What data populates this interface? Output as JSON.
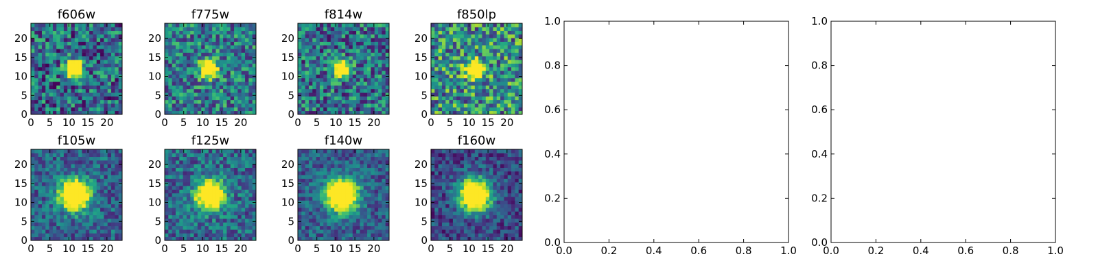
{
  "figure": {
    "background": "#ffffff",
    "colormap": "viridis"
  },
  "chart_data": [
    {
      "type": "heatmap",
      "title": "f606w",
      "grid_size": 25,
      "source_center": [
        11.5,
        12
      ],
      "source_width": 1.6,
      "noise": 0.35,
      "background_level": 0.35,
      "seed": 11,
      "xlim": [
        0,
        24
      ],
      "ylim": [
        0,
        24
      ],
      "xticks": [
        "0",
        "5",
        "10",
        "15",
        "20"
      ],
      "yticks": [
        "0",
        "5",
        "10",
        "15",
        "20"
      ]
    },
    {
      "type": "heatmap",
      "title": "f775w",
      "grid_size": 25,
      "source_center": [
        11.5,
        12
      ],
      "source_width": 1.6,
      "noise": 0.32,
      "background_level": 0.42,
      "seed": 23,
      "xlim": [
        0,
        24
      ],
      "ylim": [
        0,
        24
      ],
      "xticks": [
        "0",
        "5",
        "10",
        "15",
        "20"
      ],
      "yticks": [
        "0",
        "5",
        "10",
        "15",
        "20"
      ]
    },
    {
      "type": "heatmap",
      "title": "f814w",
      "grid_size": 25,
      "source_center": [
        11.5,
        12
      ],
      "source_width": 1.5,
      "noise": 0.34,
      "background_level": 0.38,
      "seed": 37,
      "xlim": [
        0,
        24
      ],
      "ylim": [
        0,
        24
      ],
      "xticks": [
        "0",
        "5",
        "10",
        "15",
        "20"
      ],
      "yticks": [
        "0",
        "5",
        "10",
        "15",
        "20"
      ]
    },
    {
      "type": "heatmap",
      "title": "f850lp",
      "grid_size": 25,
      "source_center": [
        11.5,
        12
      ],
      "source_width": 1.6,
      "noise": 0.38,
      "background_level": 0.5,
      "seed": 41,
      "xlim": [
        0,
        24
      ],
      "ylim": [
        0,
        24
      ],
      "xticks": [
        "0",
        "5",
        "10",
        "15",
        "20"
      ],
      "yticks": [
        "0",
        "5",
        "10",
        "15",
        "20"
      ]
    },
    {
      "type": "heatmap",
      "title": "f105w",
      "grid_size": 25,
      "source_center": [
        11.5,
        12
      ],
      "source_width": 2.8,
      "noise": 0.22,
      "background_level": 0.32,
      "seed": 53,
      "xlim": [
        0,
        24
      ],
      "ylim": [
        0,
        24
      ],
      "xticks": [
        "0",
        "5",
        "10",
        "15",
        "20"
      ],
      "yticks": [
        "0",
        "5",
        "10",
        "15",
        "20"
      ]
    },
    {
      "type": "heatmap",
      "title": "f125w",
      "grid_size": 25,
      "source_center": [
        12,
        12
      ],
      "source_width": 2.6,
      "noise": 0.24,
      "background_level": 0.35,
      "seed": 67,
      "xlim": [
        0,
        24
      ],
      "ylim": [
        0,
        24
      ],
      "xticks": [
        "0",
        "5",
        "10",
        "15",
        "20"
      ],
      "yticks": [
        "0",
        "5",
        "10",
        "15",
        "20"
      ]
    },
    {
      "type": "heatmap",
      "title": "f140w",
      "grid_size": 25,
      "source_center": [
        11.5,
        12
      ],
      "source_width": 3.0,
      "noise": 0.2,
      "background_level": 0.3,
      "seed": 71,
      "xlim": [
        0,
        24
      ],
      "ylim": [
        0,
        24
      ],
      "xticks": [
        "0",
        "5",
        "10",
        "15",
        "20"
      ],
      "yticks": [
        "0",
        "5",
        "10",
        "15",
        "20"
      ]
    },
    {
      "type": "heatmap",
      "title": "f160w",
      "grid_size": 25,
      "source_center": [
        11.5,
        12
      ],
      "source_width": 3.0,
      "noise": 0.2,
      "background_level": 0.22,
      "seed": 89,
      "xlim": [
        0,
        24
      ],
      "ylim": [
        0,
        24
      ],
      "xticks": [
        "0",
        "5",
        "10",
        "15",
        "20"
      ],
      "yticks": [
        "0",
        "5",
        "10",
        "15",
        "20"
      ]
    },
    {
      "type": "empty",
      "title": "",
      "xlim": [
        0,
        1
      ],
      "ylim": [
        0,
        1
      ],
      "xticks": [
        "0.0",
        "0.2",
        "0.4",
        "0.6",
        "0.8",
        "1.0"
      ],
      "yticks": [
        "0.0",
        "0.2",
        "0.4",
        "0.6",
        "0.8",
        "1.0"
      ]
    },
    {
      "type": "empty",
      "title": "",
      "xlim": [
        0,
        1
      ],
      "ylim": [
        0,
        1
      ],
      "xticks": [
        "0.0",
        "0.2",
        "0.4",
        "0.6",
        "0.8",
        "1.0"
      ],
      "yticks": [
        "0.0",
        "0.2",
        "0.4",
        "0.6",
        "0.8",
        "1.0"
      ]
    }
  ]
}
